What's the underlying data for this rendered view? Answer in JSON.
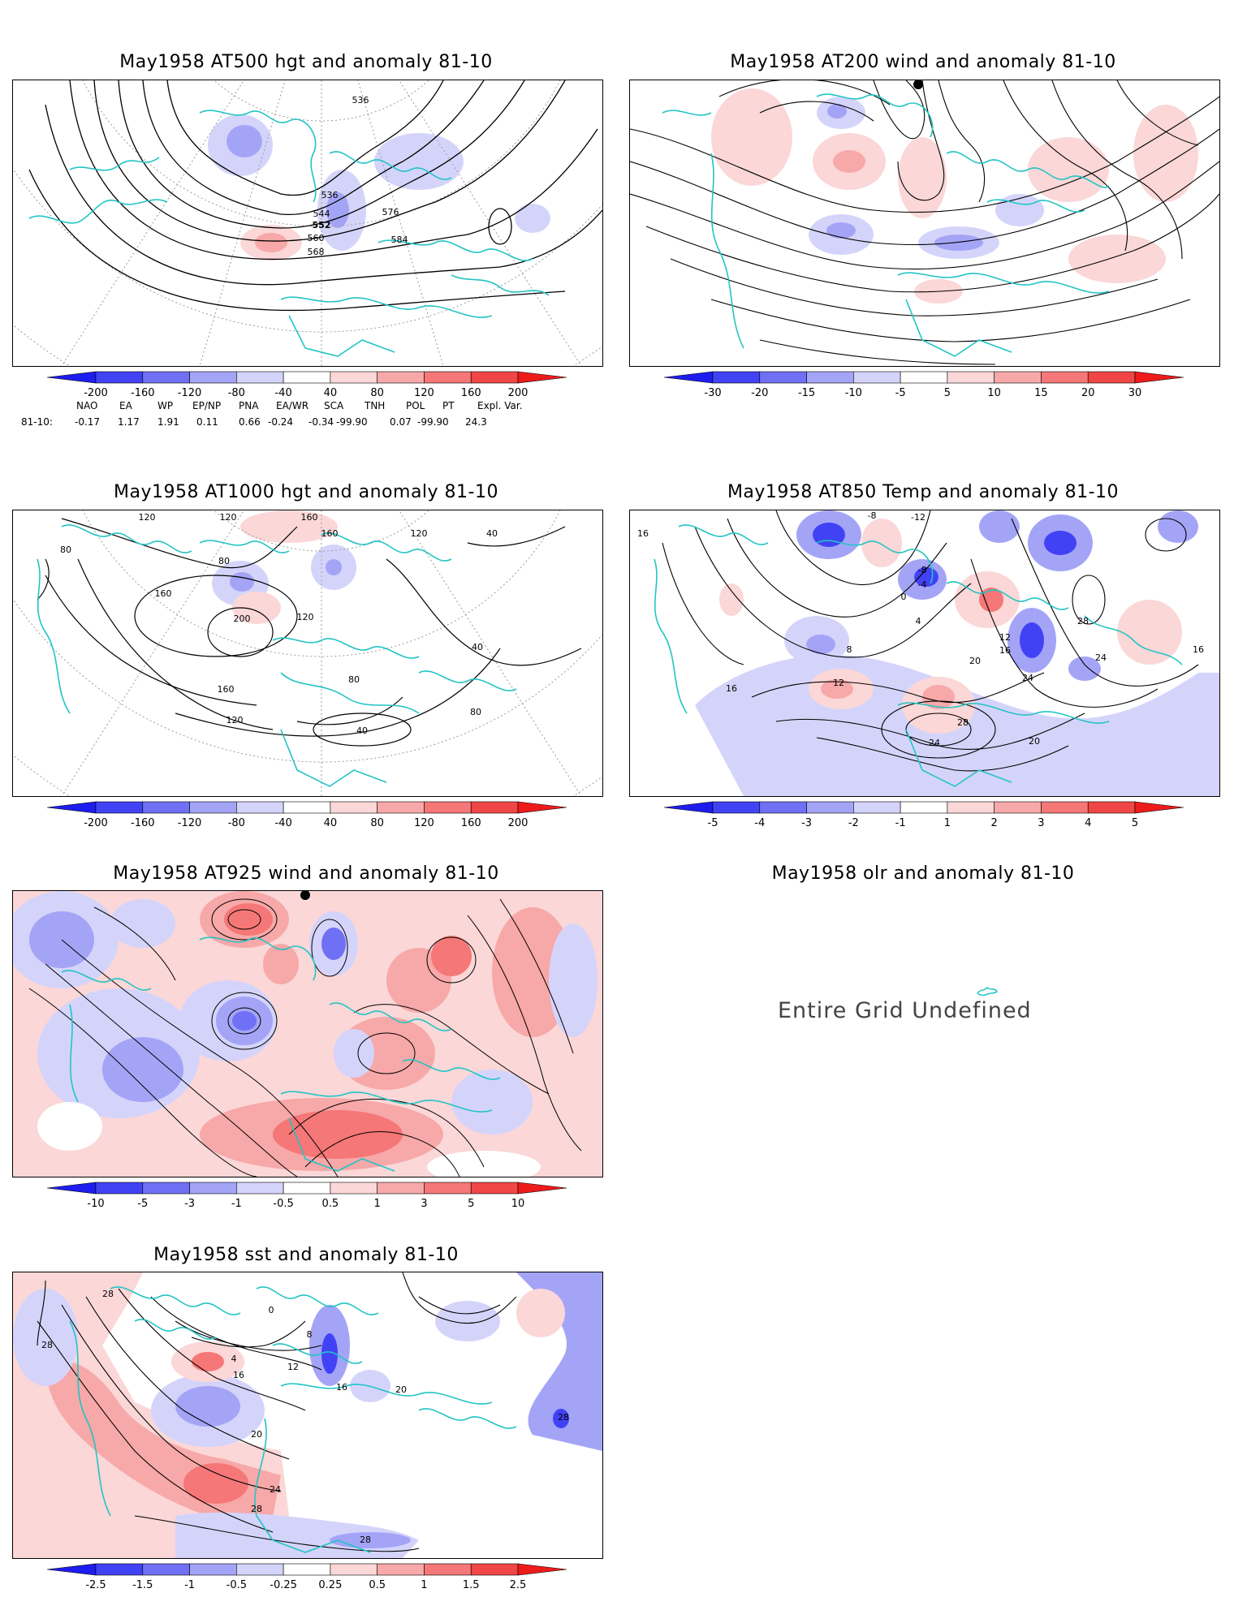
{
  "panels": [
    {
      "id": "p1",
      "title": "May1958 AT500 hgt and anomaly 81-10",
      "contour_labels": [
        "536",
        "536",
        "544",
        "552",
        "560",
        "568",
        "576",
        "584"
      ],
      "colorbar": {
        "ticks": [
          "-200",
          "-160",
          "-120",
          "-80",
          "-40",
          "40",
          "80",
          "120",
          "160",
          "200"
        ],
        "colors": [
          "#1d1df0",
          "#4242f5",
          "#7070f5",
          "#a4a4f7",
          "#d4d4fb",
          "#ffffff",
          "#fbd7d7",
          "#f7a8a8",
          "#f57777",
          "#f04646",
          "#ee1b1b"
        ]
      }
    },
    {
      "id": "p2",
      "title": "May1958 AT200 wind and anomaly 81-10",
      "colorbar": {
        "ticks": [
          "-30",
          "-20",
          "-15",
          "-10",
          "-5",
          "5",
          "10",
          "15",
          "20",
          "30"
        ],
        "colors": [
          "#1d1df0",
          "#4242f5",
          "#7070f5",
          "#a4a4f7",
          "#d4d4fb",
          "#ffffff",
          "#fbd7d7",
          "#f7a8a8",
          "#f57777",
          "#f04646",
          "#ee1b1b"
        ]
      }
    },
    {
      "id": "p3",
      "title": "May1958 AT1000 hgt and anomaly 81-10",
      "contour_labels": [
        "120",
        "120",
        "160",
        "160",
        "80",
        "80",
        "160",
        "200",
        "120",
        "160",
        "120",
        "120",
        "40",
        "80",
        "40",
        "80",
        "40"
      ],
      "colorbar": {
        "ticks": [
          "-200",
          "-160",
          "-120",
          "-80",
          "-40",
          "40",
          "80",
          "120",
          "160",
          "200"
        ],
        "colors": [
          "#1d1df0",
          "#4242f5",
          "#7070f5",
          "#a4a4f7",
          "#d4d4fb",
          "#ffffff",
          "#fbd7d7",
          "#f7a8a8",
          "#f57777",
          "#f04646",
          "#ee1b1b"
        ]
      }
    },
    {
      "id": "p4",
      "title": "May1958 AT850 Temp and anomaly 81-10",
      "contour_labels": [
        "16",
        "-8",
        "-12",
        "-8",
        "-4",
        "0",
        "4",
        "8",
        "12",
        "16",
        "12",
        "20",
        "24",
        "28",
        "24",
        "20",
        "24",
        "28",
        "16",
        "16"
      ],
      "colorbar": {
        "ticks": [
          "-5",
          "-4",
          "-3",
          "-2",
          "-1",
          "1",
          "2",
          "3",
          "4",
          "5"
        ],
        "colors": [
          "#1d1df0",
          "#4242f5",
          "#7070f5",
          "#a4a4f7",
          "#d4d4fb",
          "#ffffff",
          "#fbd7d7",
          "#f7a8a8",
          "#f57777",
          "#f04646",
          "#ee1b1b"
        ]
      }
    },
    {
      "id": "p5",
      "title": "May1958 AT925 wind and anomaly 81-10",
      "colorbar": {
        "ticks": [
          "-10",
          "-5",
          "-3",
          "-1",
          "-0.5",
          "0.5",
          "1",
          "3",
          "5",
          "10"
        ],
        "colors": [
          "#1d1df0",
          "#4242f5",
          "#7070f5",
          "#a4a4f7",
          "#d4d4fb",
          "#ffffff",
          "#fbd7d7",
          "#f7a8a8",
          "#f57777",
          "#f04646",
          "#ee1b1b"
        ]
      }
    },
    {
      "id": "p6",
      "title": "May1958 olr and anomaly 81-10",
      "message": "Entire Grid Undefined"
    },
    {
      "id": "p7",
      "title": "May1958 sst and anomaly 81-10",
      "contour_labels": [
        "28",
        "28",
        "0",
        "4",
        "8",
        "12",
        "16",
        "20",
        "24",
        "28",
        "28",
        "16",
        "20",
        "28"
      ],
      "colorbar": {
        "ticks": [
          "-2.5",
          "-1.5",
          "-1",
          "-0.5",
          "-0.25",
          "0.25",
          "0.5",
          "1",
          "1.5",
          "2.5"
        ],
        "colors": [
          "#1d1df0",
          "#4242f5",
          "#7070f5",
          "#a4a4f7",
          "#d4d4fb",
          "#ffffff",
          "#fbd7d7",
          "#f7a8a8",
          "#f57777",
          "#f04646",
          "#ee1b1b"
        ]
      }
    }
  ],
  "indices": {
    "headers": [
      "NAO",
      "EA",
      "WP",
      "EP/NP",
      "PNA",
      "EA/WR",
      "SCA",
      "TNH",
      "POL",
      "PT",
      "Expl. Var."
    ],
    "row_label": "81-10:",
    "values": [
      "-0.17",
      "1.17",
      "1.91",
      "0.11",
      "0.66",
      "-0.24",
      "-0.34",
      "-99.90",
      "0.07",
      "-99.90",
      "24.3"
    ]
  },
  "colors": {
    "coast": "#22c4c4",
    "contour": "#000000",
    "grid": "#9a9a9a"
  }
}
